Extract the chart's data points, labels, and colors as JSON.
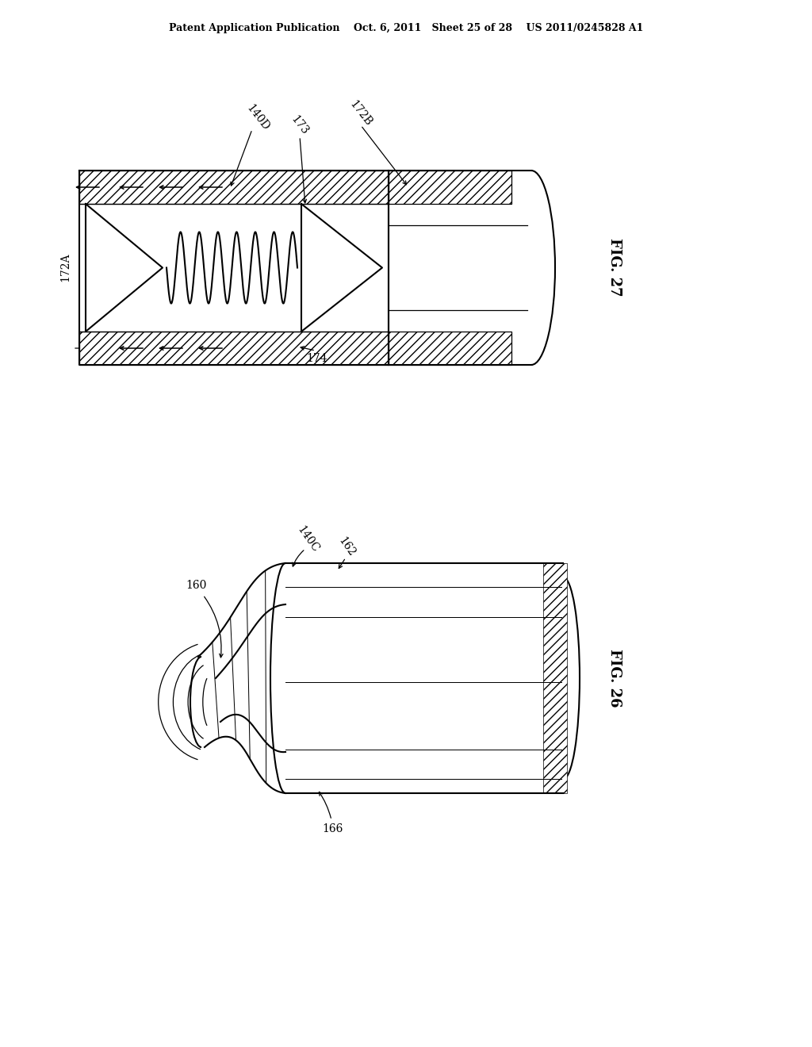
{
  "bg_color": "#ffffff",
  "line_color": "#000000",
  "header_text": "Patent Application Publication    Oct. 6, 2011   Sheet 25 of 28    US 2011/0245828 A1",
  "fig27_label": "FIG. 27",
  "fig26_label": "FIG. 26"
}
